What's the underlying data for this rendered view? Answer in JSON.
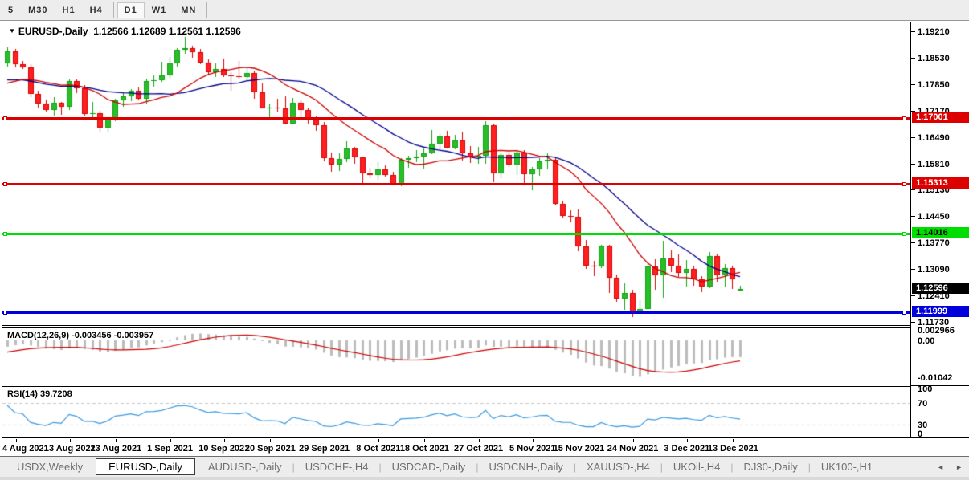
{
  "toolbar": {
    "items": [
      {
        "label": "5",
        "active": false
      },
      {
        "label": "M30",
        "active": false
      },
      {
        "label": "H1",
        "active": false
      },
      {
        "label": "H4",
        "active": false
      },
      {
        "type": "separator"
      },
      {
        "label": "D1",
        "active": true
      },
      {
        "label": "W1",
        "active": false
      },
      {
        "label": "MN",
        "active": false
      },
      {
        "type": "separator"
      }
    ]
  },
  "chart": {
    "title": {
      "caret": "▼",
      "symbol": "EURUSD-,Daily",
      "ohlc_text": "1.12566 1.12689 1.12561 1.12596"
    }
  },
  "chart_data": {
    "type": "candlestick",
    "symbol": "EURUSD-",
    "timeframe": "Daily",
    "title_ohlc": {
      "open": 1.12566,
      "high": 1.12689,
      "low": 1.12561,
      "close": 1.12596
    },
    "price_axis_ticks": [
      "1.19210",
      "1.18530",
      "1.17850",
      "1.17170",
      "1.16490",
      "1.15810",
      "1.15130",
      "1.14450",
      "1.13770",
      "1.13090",
      "1.12410",
      "1.11730"
    ],
    "axis_range": {
      "top_price": 1.1921,
      "bottom_price": 1.1173
    },
    "horizontal_levels": [
      {
        "price": "1.17001",
        "color": "#dd0000",
        "text_color": "#ffffff",
        "thickness": 3
      },
      {
        "price": "1.15313",
        "color": "#dd0000",
        "text_color": "#ffffff",
        "thickness": 3
      },
      {
        "price": "1.14016",
        "color": "#00dd00",
        "text_color": "#000000",
        "thickness": 3
      },
      {
        "price": "1.11999",
        "color": "#0000dd",
        "text_color": "#ffffff",
        "thickness": 3
      }
    ],
    "current_price_tag": {
      "price": "1.12596",
      "bg": "#000000",
      "text_color": "#ffffff"
    },
    "candles_ohlc": [
      [
        1.184,
        1.1882,
        1.1833,
        1.1872
      ],
      [
        1.1872,
        1.1878,
        1.183,
        1.1838
      ],
      [
        1.1838,
        1.1846,
        1.1825,
        1.1831
      ],
      [
        1.1831,
        1.1838,
        1.1754,
        1.1762
      ],
      [
        1.1762,
        1.177,
        1.1727,
        1.1738
      ],
      [
        1.1738,
        1.1747,
        1.1716,
        1.1721
      ],
      [
        1.1721,
        1.1753,
        1.1705,
        1.1739
      ],
      [
        1.1739,
        1.1742,
        1.1709,
        1.1729
      ],
      [
        1.1729,
        1.18,
        1.1722,
        1.1795
      ],
      [
        1.1795,
        1.18,
        1.1764,
        1.1776
      ],
      [
        1.1776,
        1.1785,
        1.1707,
        1.171
      ],
      [
        1.171,
        1.1742,
        1.17,
        1.1712
      ],
      [
        1.1712,
        1.1719,
        1.1665,
        1.1675
      ],
      [
        1.1675,
        1.1704,
        1.1663,
        1.1697
      ],
      [
        1.1697,
        1.175,
        1.1692,
        1.1745
      ],
      [
        1.1745,
        1.1765,
        1.1727,
        1.1756
      ],
      [
        1.1756,
        1.1774,
        1.1743,
        1.177
      ],
      [
        1.177,
        1.1779,
        1.1745,
        1.175
      ],
      [
        1.175,
        1.1802,
        1.1735,
        1.1795
      ],
      [
        1.1795,
        1.181,
        1.1782,
        1.1797
      ],
      [
        1.1797,
        1.1845,
        1.1793,
        1.181
      ],
      [
        1.181,
        1.1857,
        1.1802,
        1.184
      ],
      [
        1.184,
        1.188,
        1.1833,
        1.1875
      ],
      [
        1.1875,
        1.1909,
        1.1865,
        1.188
      ],
      [
        1.188,
        1.1885,
        1.1853,
        1.187
      ],
      [
        1.187,
        1.1878,
        1.1838,
        1.1842
      ],
      [
        1.1842,
        1.1851,
        1.181,
        1.1817
      ],
      [
        1.1817,
        1.184,
        1.1804,
        1.1825
      ],
      [
        1.1825,
        1.1852,
        1.1805,
        1.181
      ],
      [
        1.181,
        1.1818,
        1.177,
        1.1808
      ],
      [
        1.1808,
        1.1847,
        1.18,
        1.1805
      ],
      [
        1.1805,
        1.1832,
        1.1795,
        1.1816
      ],
      [
        1.1816,
        1.1822,
        1.175,
        1.1766
      ],
      [
        1.1766,
        1.1788,
        1.1724,
        1.1725
      ],
      [
        1.1725,
        1.1737,
        1.17,
        1.1726
      ],
      [
        1.1726,
        1.1749,
        1.1715,
        1.1725
      ],
      [
        1.1725,
        1.1756,
        1.1684,
        1.1686
      ],
      [
        1.1686,
        1.1751,
        1.1683,
        1.174
      ],
      [
        1.174,
        1.1747,
        1.1701,
        1.172
      ],
      [
        1.172,
        1.1727,
        1.1685,
        1.1695
      ],
      [
        1.1695,
        1.1705,
        1.1667,
        1.1682
      ],
      [
        1.1682,
        1.169,
        1.1589,
        1.1597
      ],
      [
        1.1597,
        1.1611,
        1.1562,
        1.158
      ],
      [
        1.158,
        1.1608,
        1.1563,
        1.1595
      ],
      [
        1.1595,
        1.164,
        1.1586,
        1.1622
      ],
      [
        1.1622,
        1.1625,
        1.1581,
        1.1598
      ],
      [
        1.1598,
        1.1601,
        1.1529,
        1.1557
      ],
      [
        1.1557,
        1.1572,
        1.1546,
        1.1553
      ],
      [
        1.1553,
        1.1586,
        1.154,
        1.1568
      ],
      [
        1.1568,
        1.1577,
        1.1548,
        1.1553
      ],
      [
        1.1553,
        1.1561,
        1.1525,
        1.1529
      ],
      [
        1.1529,
        1.1597,
        1.1524,
        1.1592
      ],
      [
        1.1592,
        1.1602,
        1.1572,
        1.1596
      ],
      [
        1.1596,
        1.1618,
        1.1588,
        1.1601
      ],
      [
        1.1601,
        1.1622,
        1.1571,
        1.161
      ],
      [
        1.161,
        1.1669,
        1.1608,
        1.1633
      ],
      [
        1.1633,
        1.1658,
        1.1616,
        1.1652
      ],
      [
        1.1652,
        1.1667,
        1.1621,
        1.1624
      ],
      [
        1.1624,
        1.1657,
        1.162,
        1.1643
      ],
      [
        1.1643,
        1.1665,
        1.159,
        1.1608
      ],
      [
        1.1608,
        1.1628,
        1.1585,
        1.1598
      ],
      [
        1.1598,
        1.1626,
        1.1583,
        1.1603
      ],
      [
        1.1603,
        1.1692,
        1.1582,
        1.1682
      ],
      [
        1.1682,
        1.1686,
        1.1535,
        1.1558
      ],
      [
        1.1558,
        1.1609,
        1.1545,
        1.1605
      ],
      [
        1.1605,
        1.1612,
        1.1575,
        1.158
      ],
      [
        1.158,
        1.1617,
        1.1552,
        1.1611
      ],
      [
        1.1611,
        1.1617,
        1.1527,
        1.1555
      ],
      [
        1.1555,
        1.1573,
        1.1513,
        1.1567
      ],
      [
        1.1567,
        1.1596,
        1.1551,
        1.1588
      ],
      [
        1.1588,
        1.1609,
        1.1567,
        1.1593
      ],
      [
        1.1593,
        1.1599,
        1.1475,
        1.1478
      ],
      [
        1.1478,
        1.1488,
        1.1443,
        1.1448
      ],
      [
        1.1448,
        1.1463,
        1.1432,
        1.1445
      ],
      [
        1.1445,
        1.1464,
        1.1356,
        1.1369
      ],
      [
        1.1369,
        1.1386,
        1.1311,
        1.1319
      ],
      [
        1.1319,
        1.1333,
        1.1294,
        1.1318
      ],
      [
        1.1318,
        1.1374,
        1.1314,
        1.1371
      ],
      [
        1.1371,
        1.1374,
        1.125,
        1.1289
      ],
      [
        1.1289,
        1.1296,
        1.1226,
        1.1236
      ],
      [
        1.1236,
        1.1275,
        1.1206,
        1.125
      ],
      [
        1.125,
        1.1257,
        1.1186,
        1.12
      ],
      [
        1.12,
        1.123,
        1.1195,
        1.1209
      ],
      [
        1.1209,
        1.1323,
        1.1206,
        1.1317
      ],
      [
        1.1317,
        1.1336,
        1.1258,
        1.1294
      ],
      [
        1.1294,
        1.1383,
        1.1236,
        1.1339
      ],
      [
        1.1339,
        1.136,
        1.1305,
        1.132
      ],
      [
        1.132,
        1.1348,
        1.1291,
        1.1302
      ],
      [
        1.1302,
        1.1334,
        1.1266,
        1.1311
      ],
      [
        1.1311,
        1.1319,
        1.1267,
        1.1284
      ],
      [
        1.1284,
        1.1293,
        1.1252,
        1.1267
      ],
      [
        1.1267,
        1.1355,
        1.1263,
        1.1345
      ],
      [
        1.1345,
        1.1351,
        1.1278,
        1.1294
      ],
      [
        1.1294,
        1.1324,
        1.1264,
        1.1314
      ],
      [
        1.1314,
        1.1319,
        1.126,
        1.1284
      ],
      [
        1.12566,
        1.12689,
        1.12561,
        1.12596
      ]
    ],
    "candle_colors": {
      "up_fill": "#2abf2a",
      "up_border": "#11a011",
      "down_fill": "#ff2020",
      "down_border": "#d40000"
    },
    "moving_averages": [
      {
        "name": "ma-slow",
        "period": 21,
        "color": "#00008b"
      },
      {
        "name": "ma-fast",
        "period": 13,
        "color": "#cc0000"
      }
    ],
    "date_ticks": [
      {
        "label": "4 Aug 2021",
        "index": 1
      },
      {
        "label": "13 Aug 2021",
        "index": 8
      },
      {
        "label": "23 Aug 2021",
        "index": 14
      },
      {
        "label": "1 Sep 2021",
        "index": 21
      },
      {
        "label": "10 Sep 2021",
        "index": 28
      },
      {
        "label": "20 Sep 2021",
        "index": 34
      },
      {
        "label": "29 Sep 2021",
        "index": 41
      },
      {
        "label": "8 Oct 2021",
        "index": 48
      },
      {
        "label": "18 Oct 2021",
        "index": 54
      },
      {
        "label": "27 Oct 2021",
        "index": 61
      },
      {
        "label": "5 Nov 2021",
        "index": 68
      },
      {
        "label": "15 Nov 2021",
        "index": 74
      },
      {
        "label": "24 Nov 2021",
        "index": 81
      },
      {
        "label": "3 Dec 2021",
        "index": 88
      },
      {
        "label": "13 Dec 2021",
        "index": 94
      }
    ],
    "macd": {
      "label": "MACD(12,26,9)",
      "values_text": "-0.003456 -0.003957",
      "params": [
        12,
        26,
        9
      ],
      "axis_labels": [
        {
          "text": "0.002966",
          "value": 0.002966
        },
        {
          "text": "0.00",
          "value": 0.0
        },
        {
          "text": "-0.01042",
          "value": -0.01042
        }
      ],
      "histogram_color": "#bcbcbc",
      "signal_color": "#cc0000"
    },
    "rsi": {
      "label": "RSI(14)",
      "value_text": "39.7208",
      "period": 14,
      "axis_labels": [
        {
          "text": "100",
          "value": 100
        },
        {
          "text": "70",
          "value": 70
        },
        {
          "text": "30",
          "value": 30
        },
        {
          "text": "0",
          "value": 0
        }
      ],
      "line_color": "#3a99e0",
      "level_line_color": "#c8c8c8"
    }
  },
  "tabbar": {
    "tabs": [
      {
        "label": "USDX,Weekly",
        "active": false
      },
      {
        "label": "EURUSD-,Daily",
        "active": true
      },
      {
        "label": "AUDUSD-,Daily",
        "active": false
      },
      {
        "label": "USDCHF-,H4",
        "active": false
      },
      {
        "label": "USDCAD-,Daily",
        "active": false
      },
      {
        "label": "USDCNH-,Daily",
        "active": false
      },
      {
        "label": "XAUUSD-,H4",
        "active": false
      },
      {
        "label": "UKOil-,H4",
        "active": false
      },
      {
        "label": "DJ30-,Daily",
        "active": false
      },
      {
        "label": "UK100-,H1",
        "active": false
      }
    ],
    "scroll_left": "◄",
    "scroll_right": "►"
  }
}
